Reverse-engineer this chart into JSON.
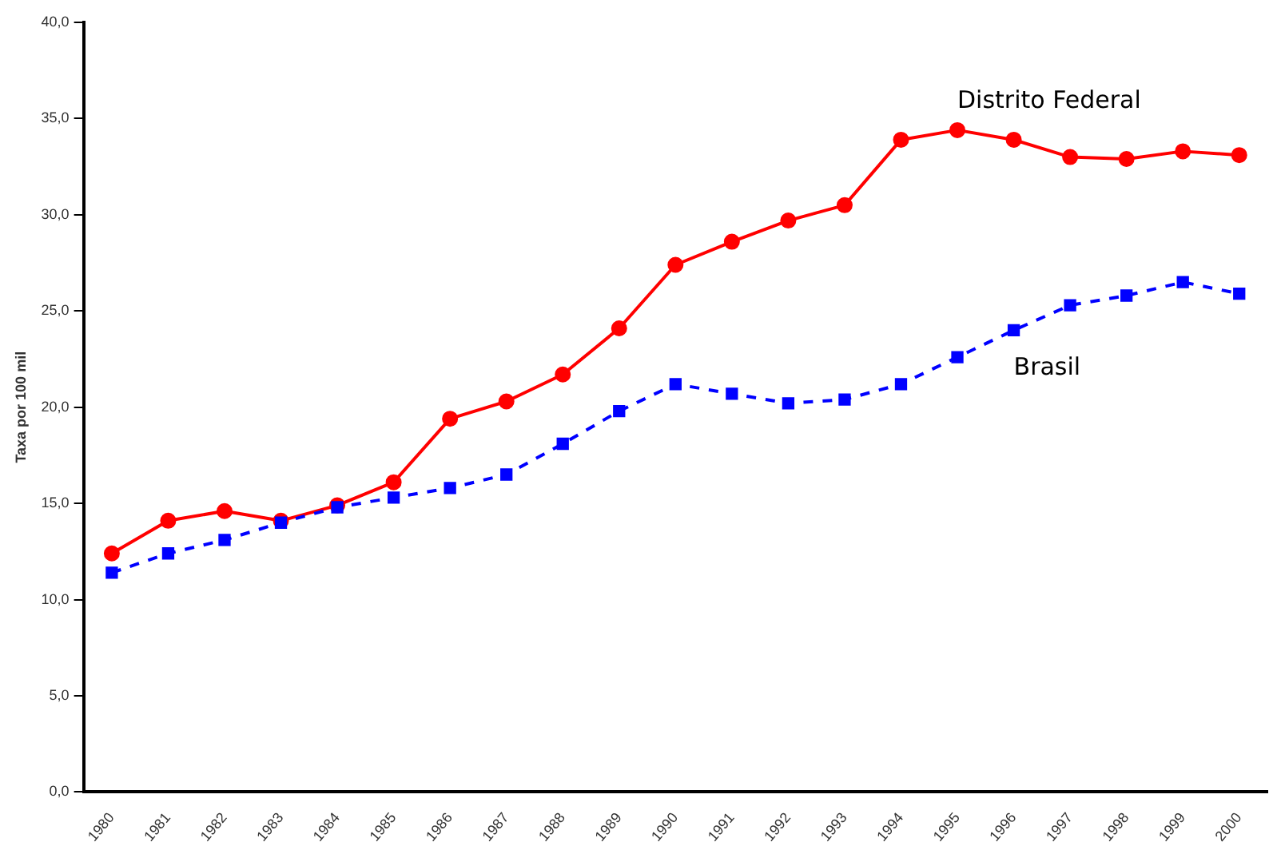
{
  "chart_data": {
    "type": "line",
    "ylabel": "Taxa por 100 mil",
    "categories": [
      "1980",
      "1981",
      "1982",
      "1983",
      "1984",
      "1985",
      "1986",
      "1987",
      "1988",
      "1989",
      "1990",
      "1991",
      "1992",
      "1993",
      "1994",
      "1995",
      "1996",
      "1997",
      "1998",
      "1999",
      "2000"
    ],
    "series": [
      {
        "name": "Distrito Federal",
        "color": "#ff0000",
        "marker": "circle",
        "line_style": "solid",
        "values": [
          12.4,
          14.1,
          14.6,
          14.1,
          14.9,
          16.1,
          19.4,
          20.3,
          21.7,
          24.1,
          27.4,
          28.6,
          29.7,
          30.5,
          33.9,
          34.4,
          33.9,
          33.0,
          32.9,
          33.3,
          33.1
        ]
      },
      {
        "name": "Brasil",
        "color": "#0000ff",
        "marker": "square",
        "line_style": "dashed",
        "values": [
          11.4,
          12.4,
          13.1,
          14.0,
          14.8,
          15.3,
          15.8,
          16.5,
          18.1,
          19.8,
          21.2,
          20.7,
          20.2,
          20.4,
          21.2,
          22.6,
          24.0,
          25.3,
          25.8,
          26.5,
          25.9
        ]
      }
    ],
    "ylim": [
      0,
      40
    ],
    "yticks": [
      {
        "value": 0,
        "label": "0,0"
      },
      {
        "value": 5,
        "label": "5,0"
      },
      {
        "value": 10,
        "label": "10,0"
      },
      {
        "value": 15,
        "label": "15,0"
      },
      {
        "value": 20,
        "label": "20,0"
      },
      {
        "value": 25,
        "label": "25,0"
      },
      {
        "value": 30,
        "label": "30,0"
      },
      {
        "value": 35,
        "label": "35,0"
      },
      {
        "value": 40,
        "label": "40,0"
      }
    ],
    "grid": false,
    "legend": false
  }
}
